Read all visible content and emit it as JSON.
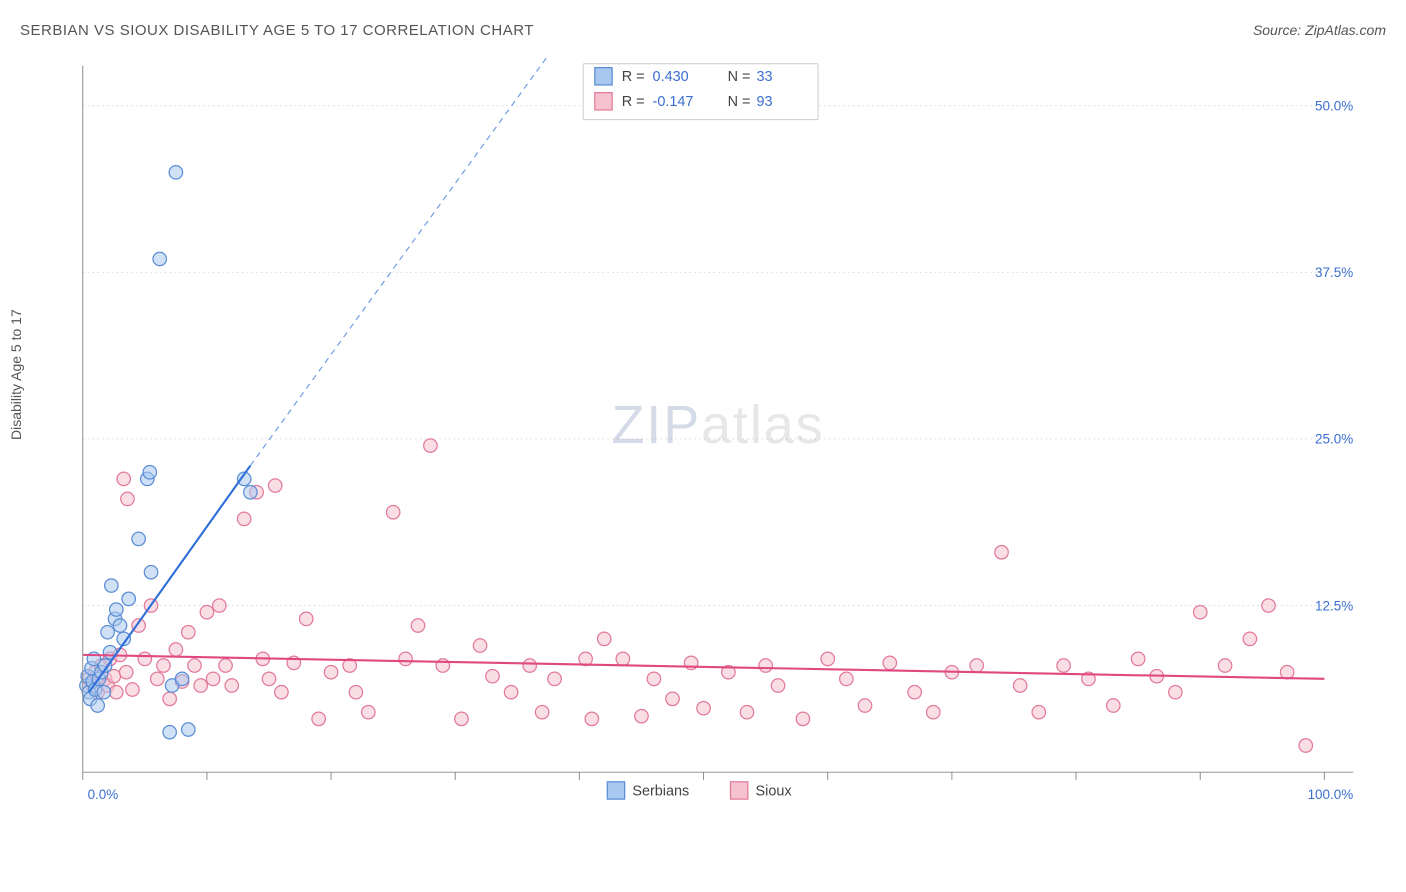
{
  "title": "SERBIAN VS SIOUX DISABILITY AGE 5 TO 17 CORRELATION CHART",
  "source": "Source: ZipAtlas.com",
  "ylabel": "Disability Age 5 to 17",
  "watermark_a": "ZIP",
  "watermark_b": "atlas",
  "chart": {
    "type": "scatter",
    "xlim": [
      0,
      100
    ],
    "ylim": [
      0,
      53
    ],
    "x_ticks": [
      0,
      10,
      20,
      30,
      40,
      50,
      60,
      70,
      80,
      90,
      100
    ],
    "y_gridlines": [
      12.5,
      25.0,
      37.5,
      50.0
    ],
    "y_labels": [
      "12.5%",
      "25.0%",
      "37.5%",
      "50.0%"
    ],
    "x_axis_labels": {
      "left": "0.0%",
      "right": "100.0%"
    },
    "background_color": "#ffffff",
    "grid_color": "#dcdcdc",
    "axis_color": "#888888",
    "marker_radius": 7,
    "series": [
      {
        "name": "Serbians",
        "fill": "#a9c8ef",
        "fill_opacity": 0.55,
        "stroke": "#5b8ed6",
        "R": "0.430",
        "N": "33",
        "trend": {
          "x1": 0.5,
          "y1": 6.0,
          "x2": 13.5,
          "y2": 23.0,
          "dash_to_x": 40,
          "dash_to_y": 57,
          "color": "#2e6fd8",
          "width": 2.2
        },
        "points": [
          [
            0.3,
            6.5
          ],
          [
            0.4,
            7.2
          ],
          [
            0.5,
            6.0
          ],
          [
            0.6,
            5.5
          ],
          [
            0.7,
            7.8
          ],
          [
            0.8,
            6.8
          ],
          [
            0.9,
            8.5
          ],
          [
            1.0,
            6.2
          ],
          [
            1.2,
            5.0
          ],
          [
            1.3,
            7.0
          ],
          [
            1.5,
            7.5
          ],
          [
            1.7,
            6.0
          ],
          [
            1.8,
            8.0
          ],
          [
            2.0,
            10.5
          ],
          [
            2.2,
            9.0
          ],
          [
            2.3,
            14.0
          ],
          [
            2.6,
            11.5
          ],
          [
            2.7,
            12.2
          ],
          [
            3.0,
            11.0
          ],
          [
            3.3,
            10.0
          ],
          [
            3.7,
            13.0
          ],
          [
            4.5,
            17.5
          ],
          [
            5.2,
            22.0
          ],
          [
            5.4,
            22.5
          ],
          [
            5.5,
            15.0
          ],
          [
            6.2,
            38.5
          ],
          [
            7.0,
            3.0
          ],
          [
            7.2,
            6.5
          ],
          [
            7.5,
            45.0
          ],
          [
            8.0,
            7.0
          ],
          [
            8.5,
            3.2
          ],
          [
            13.0,
            22.0
          ],
          [
            13.5,
            21.0
          ]
        ]
      },
      {
        "name": "Sioux",
        "fill": "#f6c2cf",
        "fill_opacity": 0.55,
        "stroke": "#e27a9a",
        "R": "-0.147",
        "N": "93",
        "trend": {
          "x1": 0,
          "y1": 8.8,
          "x2": 100,
          "y2": 7.0,
          "color": "#e04880",
          "width": 2.2
        },
        "points": [
          [
            0.5,
            7.0
          ],
          [
            0.8,
            6.5
          ],
          [
            1.0,
            7.5
          ],
          [
            1.2,
            6.0
          ],
          [
            1.5,
            8.0
          ],
          [
            1.8,
            7.0
          ],
          [
            2.0,
            6.5
          ],
          [
            2.2,
            8.5
          ],
          [
            2.5,
            7.2
          ],
          [
            2.7,
            6.0
          ],
          [
            3.0,
            8.8
          ],
          [
            3.3,
            22.0
          ],
          [
            3.5,
            7.5
          ],
          [
            3.6,
            20.5
          ],
          [
            4.0,
            6.2
          ],
          [
            4.5,
            11.0
          ],
          [
            5.0,
            8.5
          ],
          [
            5.5,
            12.5
          ],
          [
            6.0,
            7.0
          ],
          [
            6.5,
            8.0
          ],
          [
            7.0,
            5.5
          ],
          [
            7.5,
            9.2
          ],
          [
            8.0,
            6.8
          ],
          [
            8.5,
            10.5
          ],
          [
            9.0,
            8.0
          ],
          [
            9.5,
            6.5
          ],
          [
            10.0,
            12.0
          ],
          [
            10.5,
            7.0
          ],
          [
            11.0,
            12.5
          ],
          [
            11.5,
            8.0
          ],
          [
            12.0,
            6.5
          ],
          [
            13.0,
            19.0
          ],
          [
            14.0,
            21.0
          ],
          [
            14.5,
            8.5
          ],
          [
            15.0,
            7.0
          ],
          [
            15.5,
            21.5
          ],
          [
            16.0,
            6.0
          ],
          [
            17.0,
            8.2
          ],
          [
            18.0,
            11.5
          ],
          [
            19.0,
            4.0
          ],
          [
            20.0,
            7.5
          ],
          [
            21.5,
            8.0
          ],
          [
            22.0,
            6.0
          ],
          [
            23.0,
            4.5
          ],
          [
            25.0,
            19.5
          ],
          [
            26.0,
            8.5
          ],
          [
            27.0,
            11.0
          ],
          [
            28.0,
            24.5
          ],
          [
            29.0,
            8.0
          ],
          [
            30.5,
            4.0
          ],
          [
            32.0,
            9.5
          ],
          [
            33.0,
            7.2
          ],
          [
            34.5,
            6.0
          ],
          [
            36.0,
            8.0
          ],
          [
            37.0,
            4.5
          ],
          [
            38.0,
            7.0
          ],
          [
            40.5,
            8.5
          ],
          [
            41.0,
            4.0
          ],
          [
            42.0,
            10.0
          ],
          [
            43.5,
            8.5
          ],
          [
            45.0,
            4.2
          ],
          [
            46.0,
            7.0
          ],
          [
            47.5,
            5.5
          ],
          [
            49.0,
            8.2
          ],
          [
            50.0,
            4.8
          ],
          [
            52.0,
            7.5
          ],
          [
            53.5,
            4.5
          ],
          [
            55.0,
            8.0
          ],
          [
            56.0,
            6.5
          ],
          [
            58.0,
            4.0
          ],
          [
            60.0,
            8.5
          ],
          [
            61.5,
            7.0
          ],
          [
            63.0,
            5.0
          ],
          [
            65.0,
            8.2
          ],
          [
            67.0,
            6.0
          ],
          [
            68.5,
            4.5
          ],
          [
            70.0,
            7.5
          ],
          [
            72.0,
            8.0
          ],
          [
            74.0,
            16.5
          ],
          [
            75.5,
            6.5
          ],
          [
            77.0,
            4.5
          ],
          [
            79.0,
            8.0
          ],
          [
            81.0,
            7.0
          ],
          [
            83.0,
            5.0
          ],
          [
            85.0,
            8.5
          ],
          [
            86.5,
            7.2
          ],
          [
            88.0,
            6.0
          ],
          [
            90.0,
            12.0
          ],
          [
            92.0,
            8.0
          ],
          [
            94.0,
            10.0
          ],
          [
            95.5,
            12.5
          ],
          [
            97.0,
            7.5
          ],
          [
            98.5,
            2.0
          ]
        ]
      }
    ],
    "top_legend": {
      "rows": [
        {
          "swatch_fill": "#a9c8ef",
          "swatch_stroke": "#5b8ed6",
          "r_label": "R = ",
          "r_val": "0.430",
          "n_label": "N = ",
          "n_val": "33"
        },
        {
          "swatch_fill": "#f6c2cf",
          "swatch_stroke": "#e27a9a",
          "r_label": "R = ",
          "r_val": "-0.147",
          "n_label": "N = ",
          "n_val": "93"
        }
      ]
    },
    "bottom_legend": [
      {
        "swatch_fill": "#a9c8ef",
        "swatch_stroke": "#5b8ed6",
        "label": "Serbians"
      },
      {
        "swatch_fill": "#f6c2cf",
        "swatch_stroke": "#e27a9a",
        "label": "Sioux"
      }
    ]
  }
}
